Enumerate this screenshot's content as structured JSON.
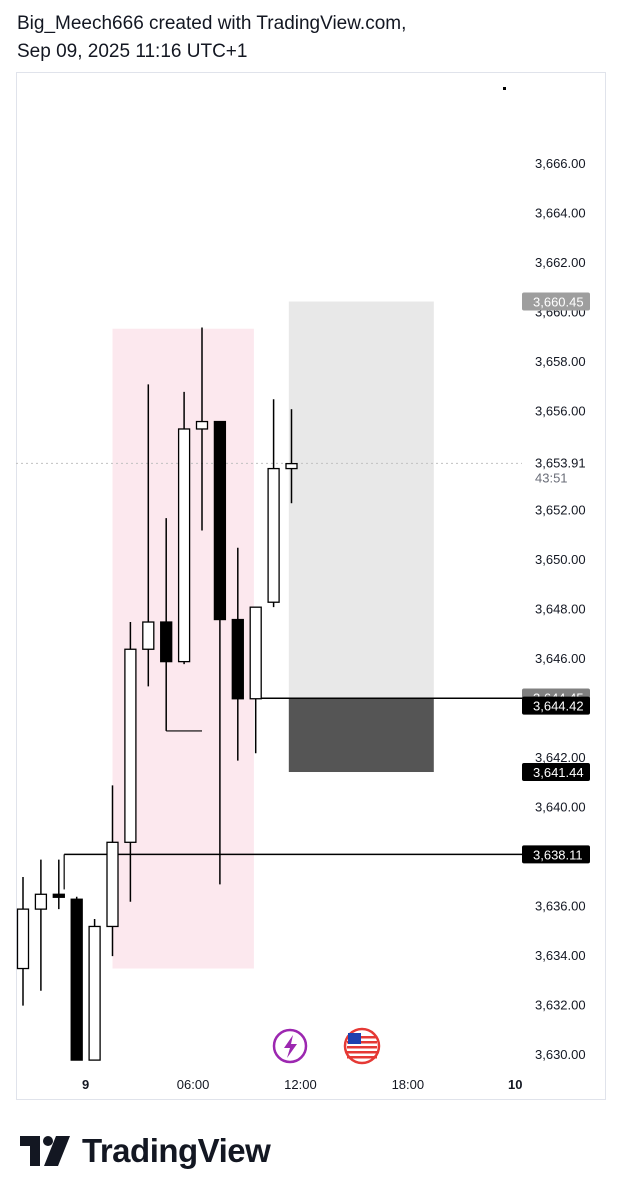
{
  "header": {
    "line1": "Big_Meech666 created with TradingView.com,",
    "line2": "Sep 09, 2025 11:16 UTC+1"
  },
  "footer": {
    "brand": "TradingView"
  },
  "colors": {
    "up_fill": "#ffffff",
    "down_fill": "#000000",
    "wick": "#000000",
    "session_box": "#fce8ee",
    "target_zone": "#e8e8e8",
    "stop_zone": "#555555",
    "label_dark": "#000000",
    "label_gray": "#9e9e9e",
    "label_mid": "#808080",
    "text_axis": "#131722"
  },
  "icons": [
    "lightning-icon",
    "us-flag-icon"
  ],
  "chart_data": {
    "type": "candlestick",
    "y_range": [
      3629.4,
      3669.4
    ],
    "y_ticks": [
      "3,666.00",
      "3,664.00",
      "3,662.00",
      "3,660.00",
      "3,658.00",
      "3,656.00",
      "3,652.00",
      "3,650.00",
      "3,648.00",
      "3,646.00",
      "3,642.00",
      "3,640.00",
      "3,636.00",
      "3,634.00",
      "3,632.00",
      "3,630.00"
    ],
    "x_labels": [
      {
        "text": "9",
        "bold": true,
        "index": 3.5
      },
      {
        "text": "06:00",
        "bold": false,
        "index": 9.5
      },
      {
        "text": "12:00",
        "bold": false,
        "index": 15.5
      },
      {
        "text": "18:00",
        "bold": false,
        "index": 21.5
      },
      {
        "text": "10",
        "bold": true,
        "index": 27.5
      }
    ],
    "candles": [
      {
        "o": 3633.5,
        "h": 3637.2,
        "l": 3632.0,
        "c": 3635.9
      },
      {
        "o": 3635.9,
        "h": 3637.9,
        "l": 3632.6,
        "c": 3636.5
      },
      {
        "o": 3636.5,
        "h": 3637.9,
        "l": 3635.9,
        "c": 3636.4
      },
      {
        "o": 3636.3,
        "h": 3636.4,
        "l": 3629.8,
        "c": 3629.8
      },
      {
        "o": 3629.8,
        "h": 3635.5,
        "l": 3629.8,
        "c": 3635.2
      },
      {
        "o": 3635.2,
        "h": 3640.9,
        "l": 3634.0,
        "c": 3638.6
      },
      {
        "o": 3638.6,
        "h": 3647.5,
        "l": 3636.2,
        "c": 3646.4
      },
      {
        "o": 3646.4,
        "h": 3657.1,
        "l": 3644.9,
        "c": 3647.5
      },
      {
        "o": 3647.5,
        "h": 3651.7,
        "l": 3643.1,
        "c": 3645.9
      },
      {
        "o": 3645.9,
        "h": 3656.8,
        "l": 3645.8,
        "c": 3655.3
      },
      {
        "o": 3655.3,
        "h": 3659.4,
        "l": 3651.2,
        "c": 3655.6
      },
      {
        "o": 3655.6,
        "h": 3655.6,
        "l": 3636.9,
        "c": 3647.6
      },
      {
        "o": 3647.6,
        "h": 3650.5,
        "l": 3641.9,
        "c": 3644.4
      },
      {
        "o": 3644.4,
        "h": 3648.1,
        "l": 3642.2,
        "c": 3648.1
      },
      {
        "o": 3648.3,
        "h": 3656.5,
        "l": 3648.1,
        "c": 3653.7
      },
      {
        "o": 3653.7,
        "h": 3656.1,
        "l": 3652.3,
        "c": 3653.9
      }
    ],
    "session_box": {
      "from_index": 5.0,
      "to_index": 12.9,
      "top": 3659.35,
      "bottom": 3633.5
    },
    "position": {
      "from_index": 14.85,
      "to_index": 22.95,
      "target": 3660.45,
      "entry": 3644.45,
      "stop": 3641.44
    },
    "hlines": [
      {
        "price": 3644.42,
        "from_index": 12.9,
        "label": "3,644.42"
      },
      {
        "price": 3638.11,
        "from_index": 2.3,
        "label": "3,638.11"
      }
    ],
    "extra_lines": [
      {
        "price": 3643.1,
        "from_index": 8.0,
        "to_index": 10.0
      }
    ],
    "current_price": {
      "value": 3653.91,
      "label": "3,653.91",
      "countdown": "43:51"
    },
    "price_labels": [
      {
        "price": 3660.45,
        "label": "3,660.45",
        "style": "gray"
      },
      {
        "price": 3644.45,
        "label": "3,644.45",
        "style": "mid"
      },
      {
        "price": 3641.44,
        "label": "3,641.44",
        "style": "dark"
      }
    ]
  }
}
